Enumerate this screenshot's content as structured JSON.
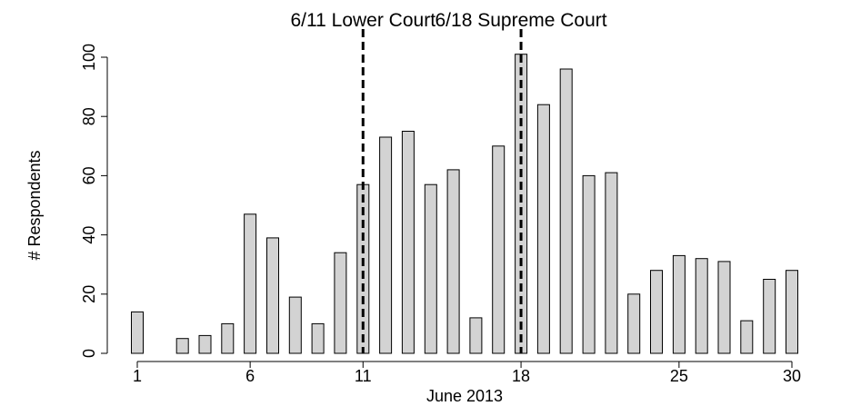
{
  "chart_data": {
    "type": "bar",
    "xlabel": "June 2013",
    "ylabel": "# Respondents",
    "ylim": [
      0,
      100
    ],
    "y_ticks": [
      0,
      20,
      40,
      60,
      80,
      100
    ],
    "x_ticks": [
      1,
      6,
      11,
      18,
      25,
      30
    ],
    "grid": false,
    "categories": [
      1,
      2,
      3,
      4,
      5,
      6,
      7,
      8,
      9,
      10,
      11,
      12,
      13,
      14,
      15,
      16,
      17,
      18,
      19,
      20,
      21,
      22,
      23,
      24,
      25,
      26,
      27,
      28,
      29,
      30
    ],
    "values": [
      14,
      0,
      5,
      6,
      10,
      47,
      39,
      19,
      10,
      34,
      57,
      73,
      75,
      57,
      62,
      12,
      70,
      101,
      84,
      96,
      60,
      61,
      20,
      28,
      33,
      32,
      31,
      11,
      25,
      28
    ],
    "bar_color": "#d3d3d3",
    "annotations": [
      {
        "label": "6/11 Lower Court",
        "x": 11,
        "style": "dashed"
      },
      {
        "label": "6/18 Supreme Court",
        "x": 18,
        "style": "dashed"
      }
    ]
  }
}
